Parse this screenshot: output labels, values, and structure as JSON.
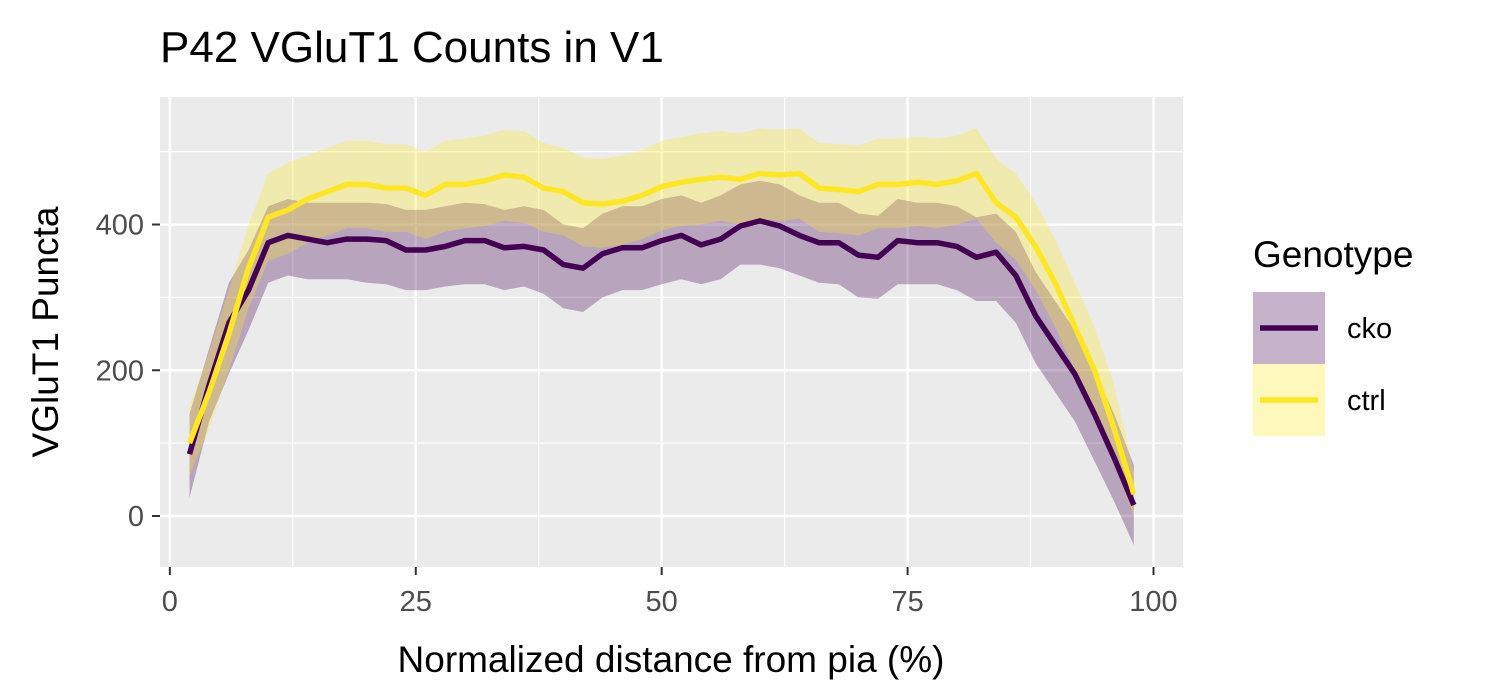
{
  "chart_data": {
    "type": "line",
    "title": "P42 VGluT1 Counts in V1",
    "xlabel": "Normalized distance from pia (%)",
    "ylabel": "VGluT1 Puncta",
    "xlim": [
      -1,
      103
    ],
    "ylim": [
      -70,
      575
    ],
    "xticks": [
      0,
      25,
      50,
      75,
      100
    ],
    "xtick_labels": [
      "0",
      "25",
      "50",
      "75",
      "100"
    ],
    "yticks": [
      0,
      200,
      400
    ],
    "ytick_labels": [
      "0",
      "200",
      "400"
    ],
    "grid": true,
    "legend": {
      "title": "Genotype",
      "position": "right"
    },
    "x": [
      2,
      4,
      6,
      8,
      10,
      12,
      14,
      16,
      18,
      20,
      22,
      24,
      26,
      28,
      30,
      32,
      34,
      36,
      38,
      40,
      42,
      44,
      46,
      48,
      50,
      52,
      54,
      56,
      58,
      60,
      62,
      64,
      66,
      68,
      70,
      72,
      74,
      76,
      78,
      80,
      82,
      84,
      86,
      88,
      90,
      92,
      94,
      96,
      98
    ],
    "series": [
      {
        "name": "cko",
        "color": "#440154",
        "values": [
          85,
          180,
          265,
          310,
          375,
          385,
          380,
          375,
          380,
          380,
          378,
          365,
          365,
          370,
          378,
          378,
          368,
          370,
          365,
          345,
          340,
          360,
          368,
          368,
          378,
          385,
          372,
          380,
          398,
          405,
          398,
          385,
          375,
          375,
          358,
          355,
          378,
          375,
          375,
          370,
          355,
          362,
          330,
          275,
          235,
          195,
          140,
          80,
          15
        ],
        "lower": [
          25,
          130,
          195,
          255,
          320,
          330,
          325,
          325,
          325,
          320,
          318,
          310,
          310,
          315,
          318,
          318,
          310,
          315,
          305,
          285,
          280,
          300,
          310,
          310,
          318,
          325,
          318,
          325,
          345,
          345,
          340,
          330,
          320,
          318,
          300,
          298,
          318,
          318,
          318,
          310,
          295,
          295,
          265,
          210,
          170,
          130,
          75,
          20,
          -40
        ],
        "upper": [
          140,
          230,
          320,
          365,
          425,
          435,
          430,
          430,
          430,
          430,
          428,
          420,
          420,
          425,
          430,
          428,
          420,
          425,
          420,
          400,
          395,
          415,
          425,
          425,
          435,
          440,
          430,
          440,
          455,
          460,
          455,
          440,
          430,
          430,
          415,
          412,
          435,
          430,
          430,
          425,
          410,
          415,
          390,
          335,
          295,
          255,
          200,
          140,
          70
        ]
      },
      {
        "name": "ctrl",
        "color": "#FDE725",
        "values": [
          100,
          170,
          250,
          340,
          410,
          420,
          435,
          445,
          455,
          455,
          450,
          450,
          440,
          455,
          455,
          460,
          468,
          465,
          450,
          445,
          430,
          428,
          432,
          440,
          452,
          458,
          462,
          465,
          462,
          470,
          468,
          470,
          450,
          448,
          445,
          455,
          455,
          458,
          455,
          460,
          470,
          430,
          410,
          370,
          320,
          260,
          200,
          120,
          30
        ],
        "lower": [
          55,
          120,
          200,
          285,
          350,
          360,
          375,
          385,
          395,
          395,
          390,
          390,
          380,
          390,
          395,
          398,
          405,
          402,
          390,
          385,
          370,
          368,
          372,
          380,
          392,
          398,
          400,
          405,
          400,
          408,
          405,
          408,
          390,
          388,
          385,
          395,
          395,
          398,
          395,
          400,
          408,
          375,
          352,
          310,
          260,
          200,
          140,
          70,
          0
        ],
        "upper": [
          150,
          225,
          310,
          400,
          470,
          485,
          495,
          505,
          515,
          515,
          510,
          510,
          500,
          515,
          518,
          522,
          530,
          528,
          512,
          505,
          492,
          490,
          495,
          502,
          515,
          520,
          525,
          528,
          525,
          532,
          530,
          532,
          512,
          510,
          508,
          518,
          518,
          520,
          518,
          522,
          532,
          490,
          470,
          430,
          380,
          320,
          260,
          180,
          60
        ]
      }
    ]
  }
}
